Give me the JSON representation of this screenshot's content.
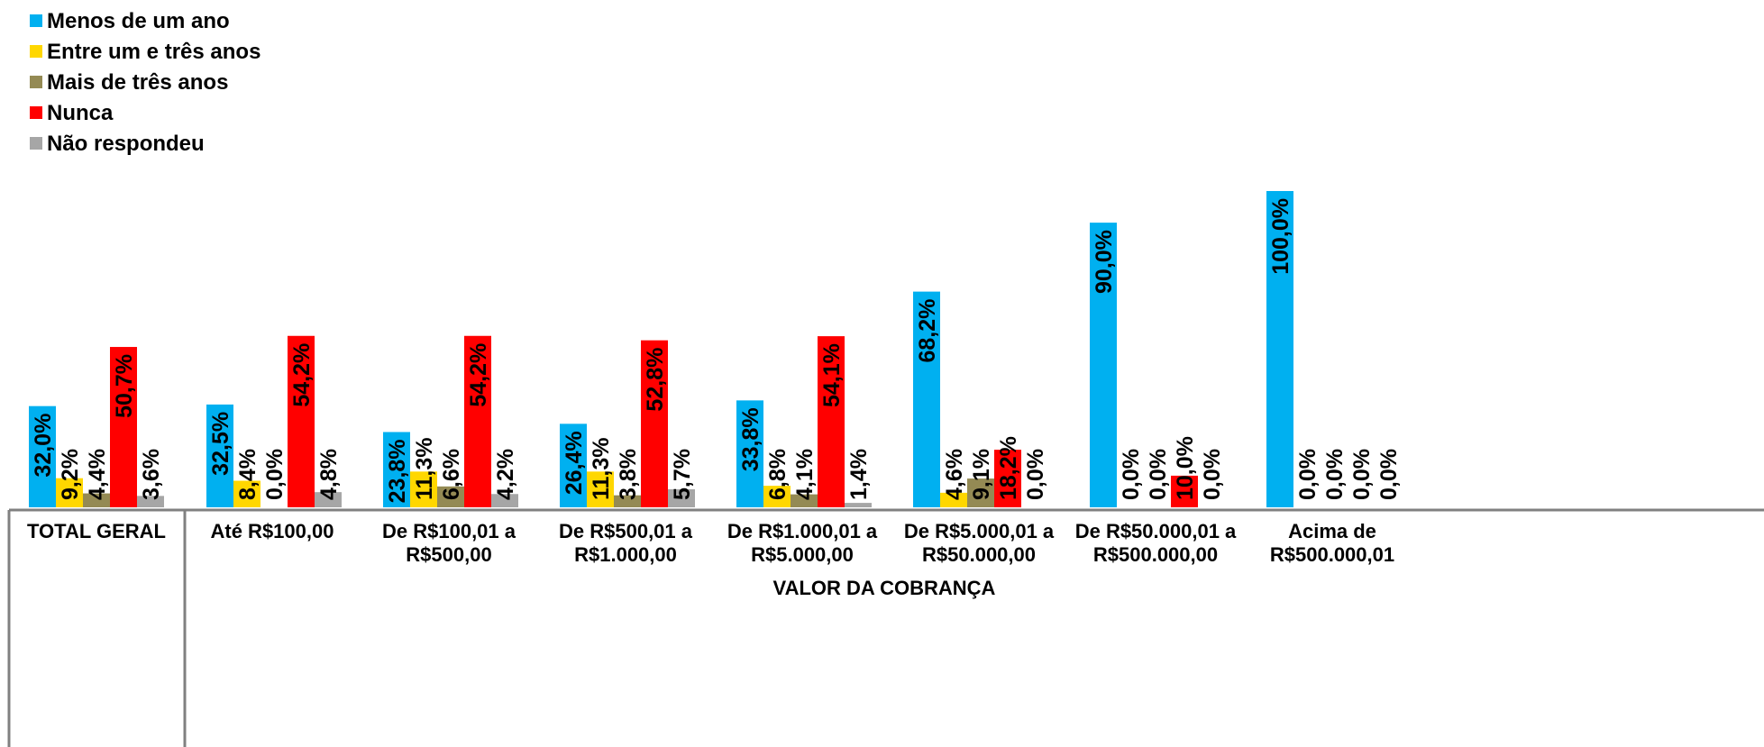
{
  "chart_data": {
    "type": "bar",
    "categories": [
      [
        "TOTAL GERAL"
      ],
      [
        "Até R$100,00"
      ],
      [
        "De R$100,01 a",
        "R$500,00"
      ],
      [
        "De R$500,01 a",
        "R$1.000,00"
      ],
      [
        "De R$1.000,01 a",
        "R$5.000,00"
      ],
      [
        "De R$5.000,01 a",
        "R$50.000,00"
      ],
      [
        "De R$50.000,01 a",
        "R$500.000,00"
      ],
      [
        "Acima de",
        "R$500.000,01"
      ]
    ],
    "group_title": "VALOR DA COBRANÇA",
    "series": [
      {
        "name": "Menos de um ano",
        "color": "#00B0F0",
        "values": [
          32.0,
          32.5,
          23.8,
          26.4,
          33.8,
          68.2,
          90.0,
          100.0
        ],
        "labels": [
          "32,0%",
          "32,5%",
          "23,8%",
          "26,4%",
          "33,8%",
          "68,2%",
          "90,0%",
          "100,0%"
        ]
      },
      {
        "name": "Entre um e três anos",
        "color": "#FFD700",
        "values": [
          9.2,
          8.4,
          11.3,
          11.3,
          6.8,
          4.6,
          0.0,
          0.0
        ],
        "labels": [
          "9,2%",
          "8,4%",
          "11,3%",
          "11,3%",
          "6,8%",
          "4,6%",
          "0,0%",
          "0,0%"
        ]
      },
      {
        "name": "Mais de três anos",
        "color": "#948A54",
        "values": [
          4.4,
          0.0,
          6.6,
          3.8,
          4.1,
          9.1,
          0.0,
          0.0
        ],
        "labels": [
          "4,4%",
          "0,0%",
          "6,6%",
          "3,8%",
          "4,1%",
          "9,1%",
          "0,0%",
          "0,0%"
        ]
      },
      {
        "name": "Nunca",
        "color": "#FF0000",
        "values": [
          50.7,
          54.2,
          54.2,
          52.8,
          54.1,
          18.2,
          10.0,
          0.0
        ],
        "labels": [
          "50,7%",
          "54,2%",
          "54,2%",
          "52,8%",
          "54,1%",
          "18,2%",
          "10,0%",
          "0,0%"
        ]
      },
      {
        "name": "Não respondeu",
        "color": "#A6A6A6",
        "values": [
          3.6,
          4.8,
          4.2,
          5.7,
          1.4,
          0.0,
          0.0,
          0.0
        ],
        "labels": [
          "3,6%",
          "4,8%",
          "4,2%",
          "5,7%",
          "1,4%",
          "0,0%",
          "0,0%",
          "0,0%"
        ]
      }
    ],
    "ylim": [
      0,
      100
    ],
    "grid": false,
    "legend_position": "top-left",
    "table_border_color": "#808080"
  }
}
